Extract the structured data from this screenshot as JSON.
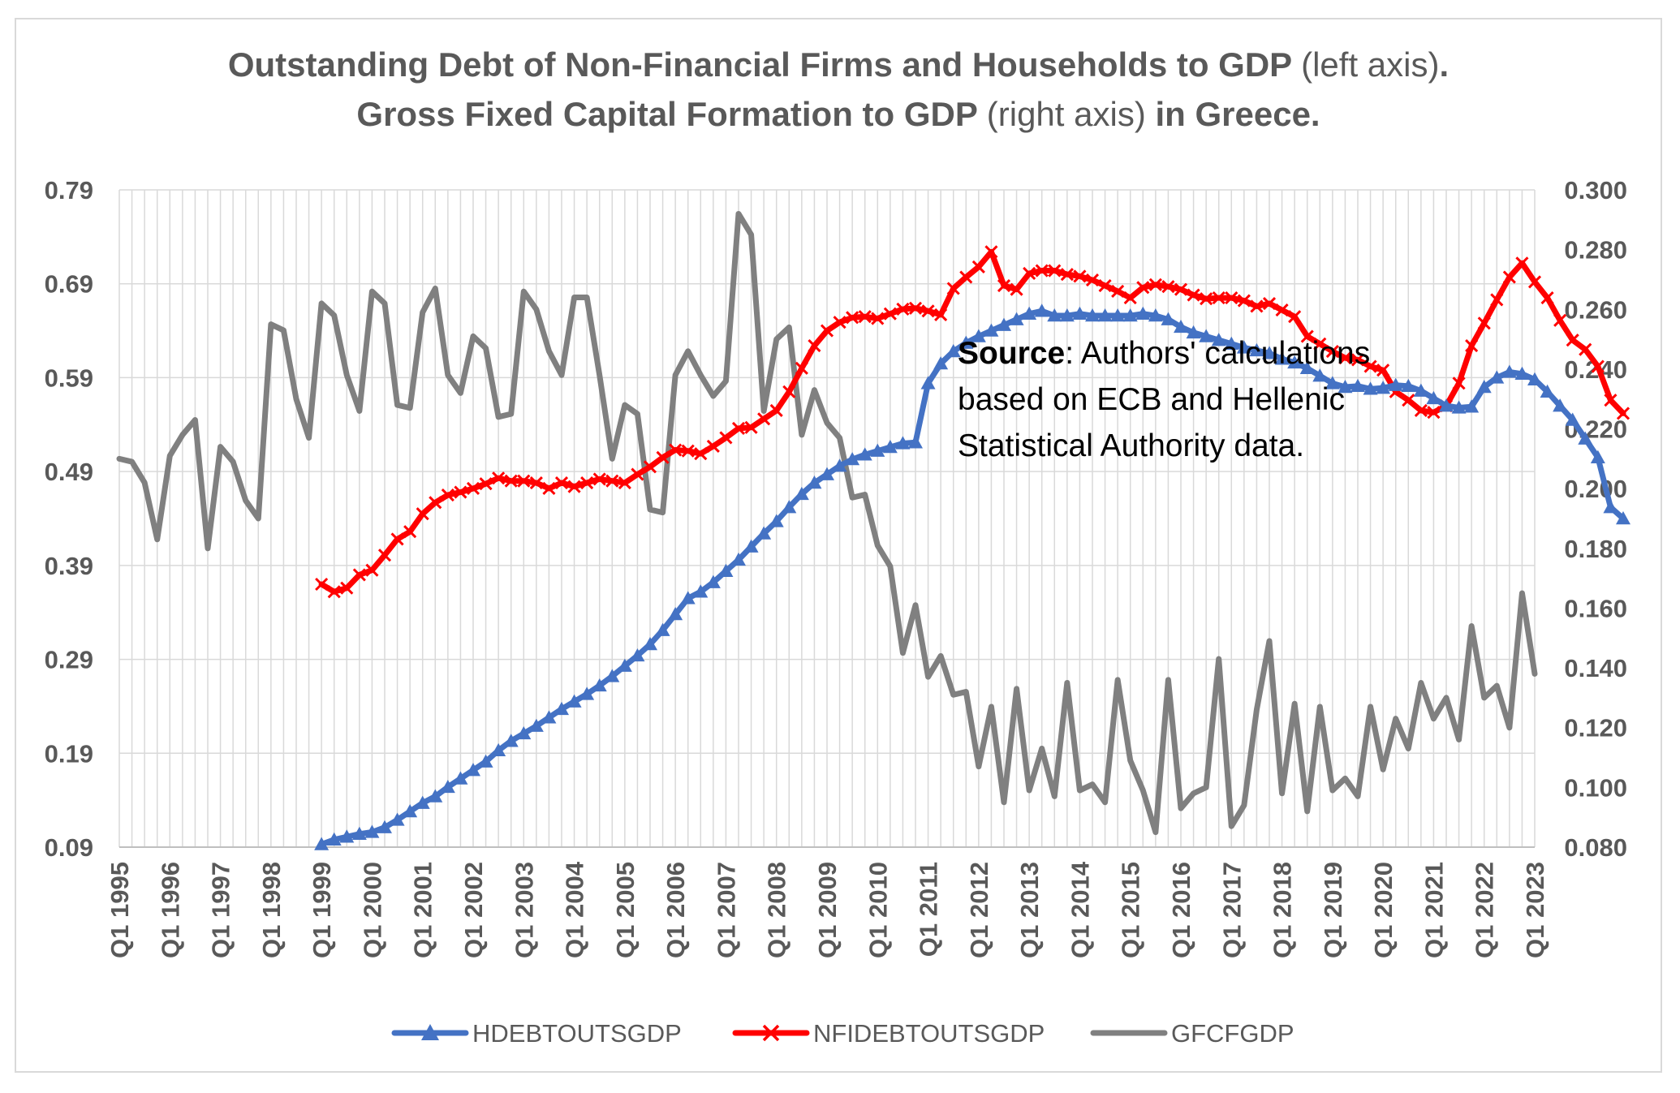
{
  "chart_data": {
    "type": "line",
    "title_line1_bold1": "Outstanding Debt of Non-Financial  Firms and Households to GDP",
    "title_line1_paren": "(left axis)",
    "title_line1_end": ".",
    "title_line2_bold1": "Gross Fixed Capital Formation to GDP",
    "title_line2_paren": "(right axis)",
    "title_line2_bold2": "in Greece.",
    "left_axis": {
      "ticks": [
        "0.79",
        "0.69",
        "0.59",
        "0.49",
        "0.39",
        "0.29",
        "0.19",
        "0.09"
      ],
      "ylim": [
        0.09,
        0.79
      ]
    },
    "right_axis": {
      "ticks": [
        "0.300",
        "0.280",
        "0.260",
        "0.240",
        "0.220",
        "0.200",
        "0.180",
        "0.160",
        "0.140",
        "0.120",
        "0.100",
        "0.080"
      ],
      "ylim": [
        0.08,
        0.3
      ]
    },
    "x_tick_labels": [
      "Q1 1995",
      "Q1 1996",
      "Q1 1997",
      "Q1 1998",
      "Q1 1999",
      "Q1 2000",
      "Q1 2001",
      "Q1 2002",
      "Q1 2003",
      "Q1 2004",
      "Q1 2005",
      "Q1 2006",
      "Q1 2007",
      "Q1 2008",
      "Q1 2009",
      "Q1 2010",
      "Q1 2011",
      "Q1 2012",
      "Q1 2013",
      "Q1 2014",
      "Q1 2015",
      "Q1 2016",
      "Q1 2017",
      "Q1 2018",
      "Q1 2019",
      "Q1 2020",
      "Q1 2021",
      "Q1 2022",
      "Q1 2023"
    ],
    "x_start": "Q1 1995",
    "x_end": "Q1 2023",
    "series": [
      {
        "name": "HDEBTOUTSGDP",
        "axis": "left",
        "color": "#4472c4",
        "marker": "triangle",
        "start_quarter_index": 16,
        "values": [
          0.093,
          0.098,
          0.101,
          0.104,
          0.106,
          0.111,
          0.119,
          0.128,
          0.137,
          0.144,
          0.154,
          0.163,
          0.172,
          0.181,
          0.193,
          0.203,
          0.211,
          0.219,
          0.228,
          0.237,
          0.245,
          0.253,
          0.262,
          0.272,
          0.283,
          0.294,
          0.306,
          0.321,
          0.338,
          0.355,
          0.362,
          0.372,
          0.384,
          0.396,
          0.41,
          0.424,
          0.437,
          0.452,
          0.466,
          0.478,
          0.487,
          0.496,
          0.503,
          0.508,
          0.512,
          0.516,
          0.52,
          0.521,
          0.584,
          0.605,
          0.618,
          0.627,
          0.634,
          0.64,
          0.646,
          0.652,
          0.658,
          0.661,
          0.656,
          0.656,
          0.658,
          0.656,
          0.656,
          0.656,
          0.656,
          0.658,
          0.656,
          0.652,
          0.644,
          0.638,
          0.634,
          0.63,
          0.626,
          0.622,
          0.619,
          0.616,
          0.61,
          0.606,
          0.6,
          0.592,
          0.584,
          0.58,
          0.581,
          0.578,
          0.579,
          0.582,
          0.581,
          0.576,
          0.568,
          0.56,
          0.558,
          0.559,
          0.58,
          0.59,
          0.596,
          0.594,
          0.588,
          0.575,
          0.56,
          0.545,
          0.525,
          0.505,
          0.452,
          0.44
        ]
      },
      {
        "name": "NFIDEBTOUTSGDP",
        "axis": "left",
        "color": "#ff0000",
        "marker": "x",
        "start_quarter_index": 16,
        "values": [
          0.37,
          0.362,
          0.366,
          0.38,
          0.385,
          0.401,
          0.418,
          0.426,
          0.445,
          0.457,
          0.465,
          0.468,
          0.472,
          0.477,
          0.483,
          0.48,
          0.48,
          0.478,
          0.472,
          0.478,
          0.474,
          0.478,
          0.482,
          0.48,
          0.478,
          0.487,
          0.495,
          0.505,
          0.513,
          0.512,
          0.509,
          0.517,
          0.526,
          0.536,
          0.537,
          0.546,
          0.555,
          0.575,
          0.6,
          0.624,
          0.64,
          0.649,
          0.654,
          0.655,
          0.653,
          0.658,
          0.663,
          0.664,
          0.661,
          0.657,
          0.685,
          0.697,
          0.708,
          0.724,
          0.688,
          0.684,
          0.701,
          0.704,
          0.704,
          0.7,
          0.698,
          0.694,
          0.688,
          0.682,
          0.675,
          0.686,
          0.689,
          0.687,
          0.684,
          0.678,
          0.674,
          0.675,
          0.675,
          0.672,
          0.666,
          0.669,
          0.662,
          0.655,
          0.634,
          0.626,
          0.618,
          0.611,
          0.609,
          0.602,
          0.598,
          0.575,
          0.566,
          0.555,
          0.553,
          0.56,
          0.584,
          0.624,
          0.648,
          0.673,
          0.697,
          0.712,
          0.692,
          0.675,
          0.651,
          0.63,
          0.62,
          0.602,
          0.566,
          0.552
        ]
      },
      {
        "name": "GFCFGDP",
        "axis": "right",
        "color": "#808080",
        "marker": "none",
        "start_quarter_index": 0,
        "values": [
          0.21,
          0.209,
          0.202,
          0.183,
          0.211,
          0.218,
          0.223,
          0.18,
          0.214,
          0.209,
          0.196,
          0.19,
          0.255,
          0.253,
          0.23,
          0.217,
          0.262,
          0.258,
          0.238,
          0.226,
          0.266,
          0.262,
          0.228,
          0.227,
          0.259,
          0.267,
          0.238,
          0.232,
          0.251,
          0.247,
          0.224,
          0.225,
          0.266,
          0.26,
          0.246,
          0.238,
          0.264,
          0.264,
          0.238,
          0.21,
          0.228,
          0.225,
          0.193,
          0.192,
          0.238,
          0.246,
          0.238,
          0.231,
          0.236,
          0.292,
          0.285,
          0.226,
          0.25,
          0.254,
          0.218,
          0.233,
          0.222,
          0.217,
          0.197,
          0.198,
          0.181,
          0.174,
          0.145,
          0.161,
          0.137,
          0.144,
          0.131,
          0.132,
          0.107,
          0.127,
          0.095,
          0.133,
          0.099,
          0.113,
          0.097,
          0.135,
          0.099,
          0.101,
          0.095,
          0.136,
          0.109,
          0.099,
          0.085,
          0.136,
          0.093,
          0.098,
          0.1,
          0.143,
          0.087,
          0.094,
          0.126,
          0.149,
          0.098,
          0.128,
          0.092,
          0.127,
          0.099,
          0.103,
          0.097,
          0.127,
          0.106,
          0.123,
          0.113,
          0.135,
          0.123,
          0.13,
          0.116,
          0.154,
          0.13,
          0.134,
          0.12,
          0.165,
          0.138
        ]
      }
    ],
    "legend_position": "bottom",
    "annotation": {
      "bold": "Source",
      "rest_line1": ": Authors' calculations",
      "line2": "based on ECB and Hellenic",
      "line3": "Statistical Authority data."
    }
  }
}
